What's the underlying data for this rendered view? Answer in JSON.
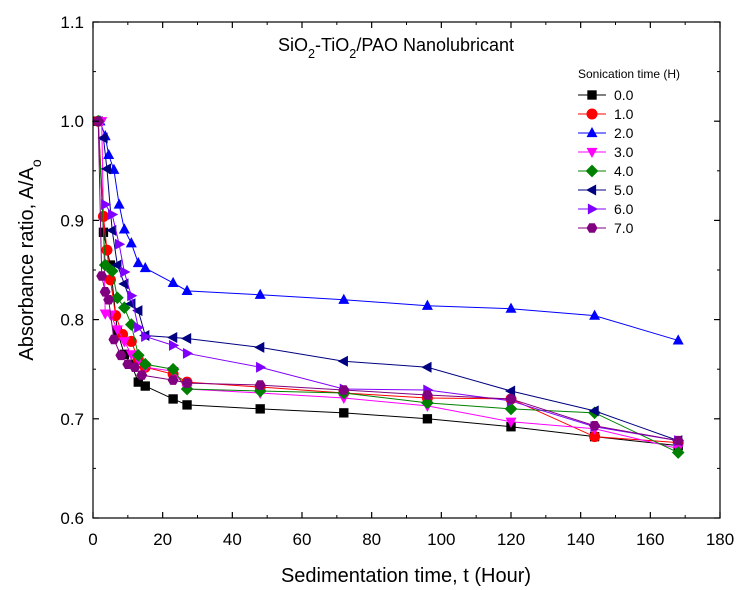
{
  "chart_data": {
    "type": "line",
    "title": {
      "parts": [
        {
          "text": "SiO",
          "sub": false
        },
        {
          "text": "2",
          "sub": true
        },
        {
          "text": "-TiO",
          "sub": false
        },
        {
          "text": "2",
          "sub": true
        },
        {
          "text": "/PAO Nanolubricant",
          "sub": false
        }
      ]
    },
    "xlabel": "Sedimentation time, t (Hour)",
    "ylabel": {
      "parts": [
        {
          "text": "Absorbance ratio, A/A",
          "sub": false
        },
        {
          "text": "o",
          "sub": true
        }
      ]
    },
    "xlim": [
      0,
      180
    ],
    "ylim": [
      0.6,
      1.1
    ],
    "xticks": [
      "0",
      "20",
      "40",
      "60",
      "80",
      "100",
      "120",
      "140",
      "160",
      "180"
    ],
    "yticks": [
      "0.6",
      "0.7",
      "0.8",
      "0.9",
      "1.0",
      "1.1"
    ],
    "grid": false,
    "legend": {
      "title": "Sonication time (H)",
      "placement": "top-right"
    },
    "series": [
      {
        "name": "0.0",
        "color": "#000000",
        "marker": "square",
        "points": [
          [
            1.5,
            1.0
          ],
          [
            3,
            0.888
          ],
          [
            5,
            0.855
          ],
          [
            7,
            0.788
          ],
          [
            9,
            0.765
          ],
          [
            11,
            0.755
          ],
          [
            13,
            0.737
          ],
          [
            15,
            0.733
          ],
          [
            23,
            0.72
          ],
          [
            27,
            0.714
          ],
          [
            48,
            0.71
          ],
          [
            72,
            0.706
          ],
          [
            96,
            0.7
          ],
          [
            120,
            0.692
          ],
          [
            144,
            0.682
          ],
          [
            168,
            0.673
          ]
        ]
      },
      {
        "name": "1.0",
        "color": "#ff0000",
        "marker": "circle",
        "points": [
          [
            1.5,
            1.0
          ],
          [
            3,
            0.904
          ],
          [
            4,
            0.87
          ],
          [
            5,
            0.84
          ],
          [
            6.5,
            0.804
          ],
          [
            8.5,
            0.785
          ],
          [
            11,
            0.778
          ],
          [
            13,
            0.76
          ],
          [
            15,
            0.752
          ],
          [
            23,
            0.745
          ],
          [
            27,
            0.737
          ],
          [
            48,
            0.732
          ],
          [
            72,
            0.726
          ],
          [
            96,
            0.721
          ],
          [
            120,
            0.72
          ],
          [
            144,
            0.682
          ],
          [
            168,
            0.676
          ]
        ]
      },
      {
        "name": "2.0",
        "color": "#0000ff",
        "marker": "triangle-up",
        "points": [
          [
            2,
            1.0
          ],
          [
            3.5,
            0.985
          ],
          [
            4.5,
            0.966
          ],
          [
            6,
            0.951
          ],
          [
            7.5,
            0.916
          ],
          [
            9,
            0.891
          ],
          [
            11,
            0.877
          ],
          [
            13,
            0.857
          ],
          [
            15,
            0.852
          ],
          [
            23,
            0.837
          ],
          [
            27,
            0.829
          ],
          [
            48,
            0.825
          ],
          [
            72,
            0.82
          ],
          [
            96,
            0.814
          ],
          [
            120,
            0.811
          ],
          [
            144,
            0.804
          ],
          [
            168,
            0.779
          ]
        ]
      },
      {
        "name": "3.0",
        "color": "#ff00ff",
        "marker": "triangle-down",
        "points": [
          [
            2.5,
            1.0
          ],
          [
            3.5,
            0.806
          ],
          [
            5,
            0.805
          ],
          [
            7,
            0.79
          ],
          [
            9,
            0.778
          ],
          [
            11,
            0.765
          ],
          [
            13,
            0.76
          ],
          [
            15,
            0.752
          ],
          [
            23,
            0.748
          ],
          [
            27,
            0.73
          ],
          [
            48,
            0.726
          ],
          [
            72,
            0.721
          ],
          [
            96,
            0.713
          ],
          [
            120,
            0.697
          ],
          [
            144,
            0.69
          ],
          [
            168,
            0.67
          ]
        ]
      },
      {
        "name": "4.0",
        "color": "#008000",
        "marker": "diamond",
        "points": [
          [
            1.5,
            1.0
          ],
          [
            3.5,
            0.855
          ],
          [
            5.5,
            0.849
          ],
          [
            7,
            0.822
          ],
          [
            9,
            0.812
          ],
          [
            11,
            0.795
          ],
          [
            13,
            0.764
          ],
          [
            15,
            0.755
          ],
          [
            23,
            0.75
          ],
          [
            27,
            0.73
          ],
          [
            48,
            0.728
          ],
          [
            72,
            0.726
          ],
          [
            96,
            0.716
          ],
          [
            120,
            0.71
          ],
          [
            144,
            0.706
          ],
          [
            168,
            0.666
          ]
        ]
      },
      {
        "name": "5.0",
        "color": "#000080",
        "marker": "triangle-left",
        "points": [
          [
            3,
            0.983
          ],
          [
            4,
            0.952
          ],
          [
            5.5,
            0.89
          ],
          [
            7,
            0.855
          ],
          [
            9,
            0.836
          ],
          [
            11,
            0.816
          ],
          [
            13,
            0.809
          ],
          [
            15,
            0.784
          ],
          [
            23,
            0.782
          ],
          [
            27,
            0.781
          ],
          [
            48,
            0.772
          ],
          [
            72,
            0.758
          ],
          [
            96,
            0.752
          ],
          [
            120,
            0.728
          ],
          [
            144,
            0.708
          ],
          [
            168,
            0.678
          ]
        ]
      },
      {
        "name": "6.0",
        "color": "#8000ff",
        "marker": "triangle-right",
        "points": [
          [
            3.5,
            0.916
          ],
          [
            5.5,
            0.906
          ],
          [
            7.5,
            0.876
          ],
          [
            9,
            0.848
          ],
          [
            11,
            0.824
          ],
          [
            13,
            0.792
          ],
          [
            15,
            0.783
          ],
          [
            23,
            0.774
          ],
          [
            27,
            0.766
          ],
          [
            48,
            0.752
          ],
          [
            72,
            0.73
          ],
          [
            96,
            0.729
          ],
          [
            120,
            0.718
          ],
          [
            144,
            0.692
          ],
          [
            168,
            0.678
          ]
        ]
      },
      {
        "name": "7.0",
        "color": "#800080",
        "marker": "hexagon",
        "points": [
          [
            1.5,
            1.0
          ],
          [
            2.5,
            0.844
          ],
          [
            3.5,
            0.828
          ],
          [
            4.5,
            0.82
          ],
          [
            6,
            0.78
          ],
          [
            8,
            0.764
          ],
          [
            10,
            0.755
          ],
          [
            12,
            0.752
          ],
          [
            14,
            0.744
          ],
          [
            23,
            0.739
          ],
          [
            27,
            0.736
          ],
          [
            48,
            0.734
          ],
          [
            72,
            0.729
          ],
          [
            96,
            0.724
          ],
          [
            120,
            0.72
          ],
          [
            144,
            0.693
          ],
          [
            168,
            0.678
          ]
        ]
      }
    ]
  }
}
